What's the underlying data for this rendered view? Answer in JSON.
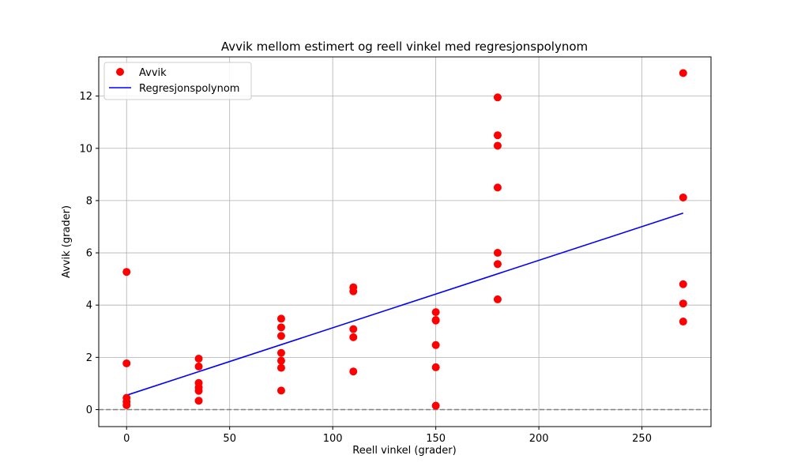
{
  "chart_data": {
    "type": "scatter",
    "title": "Avvik mellom estimert og reell vinkel med regresjonspolynom",
    "xlabel": "Reell vinkel (grader)",
    "ylabel": "Avvik (grader)",
    "xlim": [
      -13.5,
      283.5
    ],
    "ylim": [
      -0.65,
      13.5
    ],
    "xticks": [
      0,
      50,
      100,
      150,
      200,
      250
    ],
    "yticks": [
      0,
      2,
      4,
      6,
      8,
      10,
      12
    ],
    "grid": true,
    "legend_position": "upper-left",
    "series": [
      {
        "name": "Avvik",
        "kind": "points",
        "color": "#ff0000",
        "points": [
          [
            0,
            5.27
          ],
          [
            0,
            1.77
          ],
          [
            0,
            0.45
          ],
          [
            0,
            0.3
          ],
          [
            0,
            0.17
          ],
          [
            35,
            1.95
          ],
          [
            35,
            1.65
          ],
          [
            35,
            1.02
          ],
          [
            35,
            0.85
          ],
          [
            35,
            0.72
          ],
          [
            35,
            0.34
          ],
          [
            75,
            3.48
          ],
          [
            75,
            3.15
          ],
          [
            75,
            2.82
          ],
          [
            75,
            2.17
          ],
          [
            75,
            1.87
          ],
          [
            75,
            1.6
          ],
          [
            75,
            0.73
          ],
          [
            110,
            4.68
          ],
          [
            110,
            4.53
          ],
          [
            110,
            3.08
          ],
          [
            110,
            2.77
          ],
          [
            110,
            1.46
          ],
          [
            150,
            3.73
          ],
          [
            150,
            3.43
          ],
          [
            150,
            3.41
          ],
          [
            150,
            2.47
          ],
          [
            150,
            1.62
          ],
          [
            150,
            0.15
          ],
          [
            180,
            11.95
          ],
          [
            180,
            10.5
          ],
          [
            180,
            10.1
          ],
          [
            180,
            8.5
          ],
          [
            180,
            6.0
          ],
          [
            180,
            5.57
          ],
          [
            180,
            4.22
          ],
          [
            270,
            12.88
          ],
          [
            270,
            8.12
          ],
          [
            270,
            4.8
          ],
          [
            270,
            4.06
          ],
          [
            270,
            3.37
          ]
        ]
      },
      {
        "name": "Regresjonspolynom",
        "kind": "line",
        "color": "#0000ff",
        "points": [
          [
            0,
            0.55
          ],
          [
            270,
            7.52
          ]
        ]
      }
    ],
    "reference_line": {
      "y": 0,
      "style": "dashed",
      "color": "#808080"
    }
  }
}
